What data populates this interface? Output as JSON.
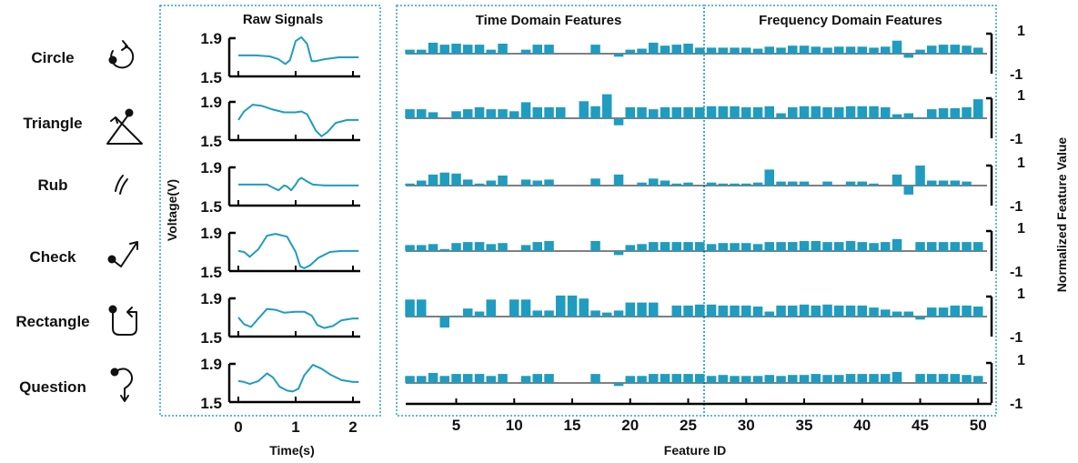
{
  "headers": {
    "raw": "Raw Signals",
    "time": "Time Domain Features",
    "freq": "Frequency Domain Features"
  },
  "axes": {
    "voltage_label": "Voltage(V)",
    "time_label": "Time(s)",
    "feature_label": "Feature ID",
    "norm_label": "Normalized Feature Value"
  },
  "colors": {
    "series": "#1f9cc0",
    "frame": "#2aa3c4",
    "axis": "#000000"
  },
  "icons": [
    "circle-gesture-icon",
    "triangle-gesture-icon",
    "rub-gesture-icon",
    "check-gesture-icon",
    "rectangle-gesture-icon",
    "question-gesture-icon"
  ],
  "chart_data": [
    {
      "type": "line",
      "title": "Raw Signals",
      "xlabel": "Time(s)",
      "ylabel": "Voltage(V)",
      "xlim": [
        -0.1,
        2.15
      ],
      "ylim": [
        1.5,
        1.95
      ],
      "xticks": [
        "0",
        "1",
        "2"
      ],
      "yticks": [
        "1.9",
        "1.5"
      ],
      "series": [
        {
          "name": "Circle",
          "x": [
            0,
            0.3,
            0.55,
            0.7,
            0.82,
            0.9,
            1.0,
            1.1,
            1.2,
            1.28,
            1.35,
            1.5,
            1.75,
            2.0,
            2.1
          ],
          "y": [
            1.72,
            1.72,
            1.71,
            1.68,
            1.63,
            1.67,
            1.87,
            1.91,
            1.84,
            1.66,
            1.66,
            1.68,
            1.7,
            1.7,
            1.7
          ]
        },
        {
          "name": "Triangle",
          "x": [
            0,
            0.1,
            0.25,
            0.4,
            0.6,
            0.8,
            1.0,
            1.1,
            1.2,
            1.35,
            1.45,
            1.55,
            1.7,
            1.9,
            2.1
          ],
          "y": [
            1.71,
            1.8,
            1.87,
            1.86,
            1.82,
            1.79,
            1.79,
            1.8,
            1.77,
            1.6,
            1.54,
            1.58,
            1.68,
            1.71,
            1.71
          ]
        },
        {
          "name": "Rub",
          "x": [
            0,
            0.3,
            0.5,
            0.6,
            0.7,
            0.8,
            0.85,
            0.92,
            1.0,
            1.05,
            1.1,
            1.18,
            1.3,
            1.5,
            1.8,
            2.1
          ],
          "y": [
            1.72,
            1.72,
            1.72,
            1.69,
            1.66,
            1.71,
            1.7,
            1.66,
            1.72,
            1.77,
            1.79,
            1.76,
            1.72,
            1.71,
            1.71,
            1.71
          ]
        },
        {
          "name": "Check",
          "x": [
            0,
            0.1,
            0.2,
            0.35,
            0.5,
            0.65,
            0.85,
            1.0,
            1.08,
            1.15,
            1.25,
            1.4,
            1.6,
            1.8,
            2.1
          ],
          "y": [
            1.71,
            1.7,
            1.65,
            1.73,
            1.87,
            1.89,
            1.86,
            1.7,
            1.55,
            1.53,
            1.56,
            1.64,
            1.7,
            1.71,
            1.71
          ]
        },
        {
          "name": "Rectangle",
          "x": [
            0,
            0.1,
            0.22,
            0.35,
            0.5,
            0.65,
            0.8,
            1.0,
            1.15,
            1.28,
            1.38,
            1.5,
            1.65,
            1.8,
            2.0,
            2.1
          ],
          "y": [
            1.7,
            1.63,
            1.6,
            1.69,
            1.79,
            1.78,
            1.75,
            1.76,
            1.76,
            1.72,
            1.62,
            1.59,
            1.61,
            1.67,
            1.69,
            1.69
          ]
        },
        {
          "name": "Question",
          "x": [
            0,
            0.1,
            0.2,
            0.35,
            0.5,
            0.6,
            0.72,
            0.85,
            0.95,
            1.05,
            1.15,
            1.3,
            1.45,
            1.6,
            1.8,
            2.0,
            2.1
          ],
          "y": [
            1.72,
            1.71,
            1.69,
            1.72,
            1.8,
            1.76,
            1.66,
            1.62,
            1.61,
            1.64,
            1.78,
            1.89,
            1.85,
            1.79,
            1.73,
            1.71,
            1.71
          ]
        }
      ]
    },
    {
      "type": "bar",
      "title": "Time Domain Features / Frequency Domain Features",
      "xlabel": "Feature ID",
      "ylabel": "Normalized Feature Value",
      "xlim": [
        0.5,
        50.5
      ],
      "ylim": [
        -1.2,
        1.2
      ],
      "xticks": [
        "5",
        "10",
        "15",
        "20",
        "25",
        "30",
        "35",
        "40",
        "45",
        "50"
      ],
      "yticks": [
        "1",
        "-1"
      ],
      "time_domain_ids": [
        1,
        26
      ],
      "frequency_domain_ids": [
        27,
        50
      ],
      "series": [
        {
          "name": "Circle",
          "values": [
            0.2,
            0.2,
            0.55,
            0.45,
            0.5,
            0.45,
            0.45,
            0.2,
            0.5,
            0,
            0.2,
            0.45,
            0.45,
            0,
            0,
            0,
            0.45,
            0,
            -0.15,
            0.2,
            0.25,
            0.55,
            0.4,
            0.45,
            0.5,
            0.3,
            0.3,
            0.3,
            0.3,
            0.3,
            0.25,
            0.35,
            0.3,
            0.4,
            0.4,
            0.35,
            0.3,
            0.35,
            0.35,
            0.35,
            0.3,
            0.35,
            0.65,
            -0.2,
            0.2,
            0.4,
            0.45,
            0.45,
            0.4,
            0.3
          ]
        },
        {
          "name": "Triangle",
          "values": [
            0.45,
            0.45,
            0.3,
            0,
            0.35,
            0.45,
            0.55,
            0.45,
            0.45,
            0.35,
            0.8,
            0.55,
            0.55,
            0.55,
            0,
            0.85,
            0.6,
            1.2,
            -0.35,
            0.55,
            0.55,
            0.45,
            0.55,
            0.55,
            0.55,
            0.55,
            0.6,
            0.6,
            0.6,
            0.55,
            0.55,
            0.6,
            0.25,
            0.55,
            0.6,
            0.6,
            0.55,
            0.55,
            0.6,
            0.6,
            0.6,
            0.55,
            0.2,
            0.25,
            0.05,
            0.45,
            0.5,
            0.5,
            0.55,
            0.95
          ]
        },
        {
          "name": "Rub",
          "values": [
            0.1,
            0.25,
            0.55,
            0.65,
            0.6,
            0.3,
            0.1,
            0.25,
            0.5,
            0,
            0.3,
            0.25,
            0.3,
            0,
            0,
            0,
            0.35,
            0,
            0.55,
            0,
            0.15,
            0.35,
            0.25,
            0.1,
            0.15,
            0,
            0.15,
            0.1,
            0.1,
            0.1,
            0.15,
            0.8,
            0.2,
            0.2,
            0.2,
            0,
            0.2,
            0,
            0.2,
            0.2,
            0.1,
            0,
            0.55,
            -0.45,
            1.0,
            0.25,
            0.25,
            0.25,
            0.2,
            0
          ]
        },
        {
          "name": "Check",
          "values": [
            0.3,
            0.3,
            0.35,
            0.1,
            0.4,
            0.45,
            0.45,
            0.35,
            0.4,
            0,
            0.3,
            0.45,
            0.5,
            0,
            0,
            0,
            0.5,
            0,
            -0.2,
            0.3,
            0.35,
            0.45,
            0.45,
            0.45,
            0.45,
            0.45,
            0.35,
            0.4,
            0.4,
            0.4,
            0.35,
            0.45,
            0.45,
            0.45,
            0.5,
            0.5,
            0.45,
            0.45,
            0.5,
            0.45,
            0.4,
            0.45,
            0.6,
            0,
            0.45,
            0.45,
            0.45,
            0.45,
            0.45,
            0.45
          ]
        },
        {
          "name": "Rectangle",
          "values": [
            0.85,
            0.85,
            0,
            -0.55,
            0.05,
            0.4,
            0.25,
            0.85,
            0,
            0.85,
            0.85,
            0.3,
            0.3,
            1.05,
            1.05,
            0.9,
            0.3,
            0.2,
            0.3,
            0.7,
            0.7,
            0.7,
            0,
            0.55,
            0.55,
            0.6,
            0.6,
            0.55,
            0.55,
            0.55,
            0.5,
            0.25,
            0.55,
            0.55,
            0.6,
            0.55,
            0.6,
            0.55,
            0.55,
            0.55,
            0.45,
            0.35,
            0.25,
            0.25,
            -0.15,
            0.45,
            0.45,
            0.55,
            0.55,
            0.5
          ]
        },
        {
          "name": "Question",
          "values": [
            0.35,
            0.35,
            0.5,
            0.35,
            0.45,
            0.45,
            0.45,
            0.35,
            0.45,
            0,
            0.35,
            0.45,
            0.45,
            0,
            0,
            0,
            0.45,
            0,
            -0.15,
            0.35,
            0.35,
            0.45,
            0.45,
            0.45,
            0.45,
            0.45,
            0.35,
            0.4,
            0.35,
            0.35,
            0.35,
            0.4,
            0.35,
            0.4,
            0.4,
            0.45,
            0.4,
            0.4,
            0.45,
            0.45,
            0.45,
            0.45,
            0.55,
            0,
            0.45,
            0.45,
            0.45,
            0.45,
            0.4,
            0.35
          ]
        }
      ]
    }
  ]
}
